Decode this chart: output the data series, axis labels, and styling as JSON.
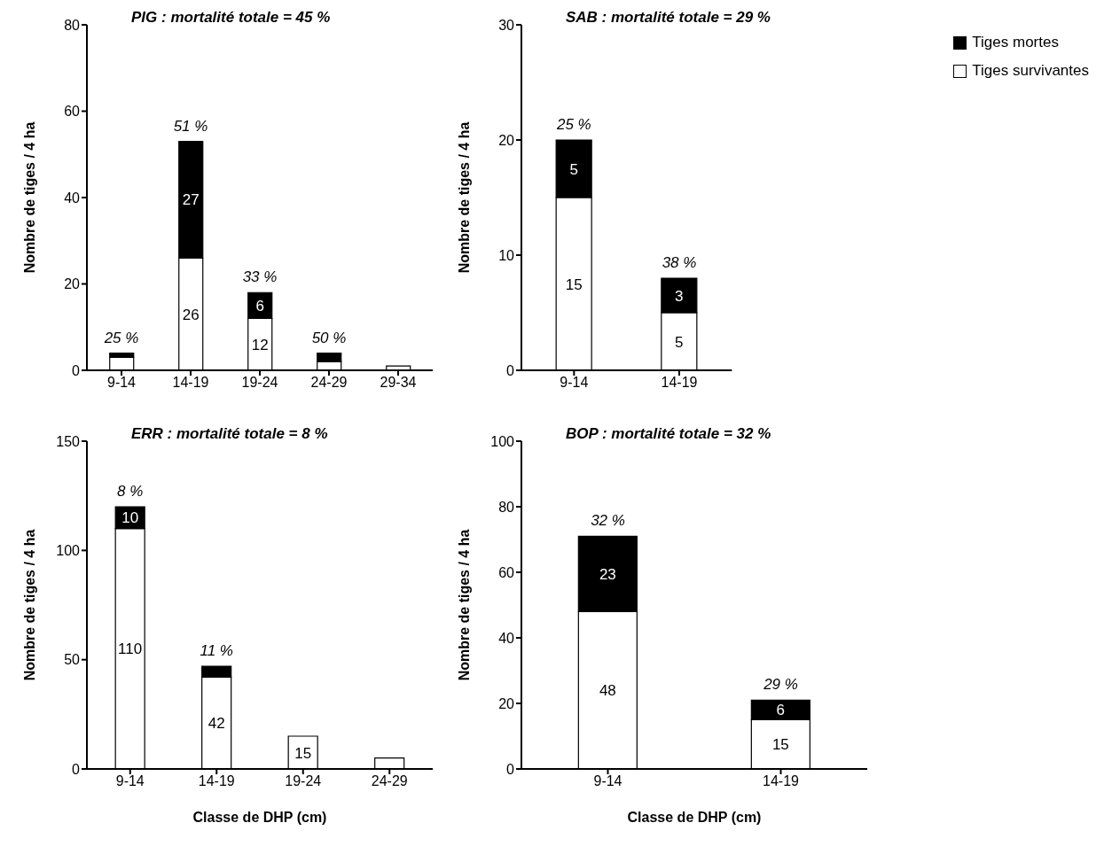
{
  "chart_data": [
    {
      "type": "bar",
      "title": "PIG : mortalité totale = 45 %",
      "ylabel": "Nombre de tiges / 4 ha",
      "categories": [
        "9-14",
        "14-19",
        "19-24",
        "24-29",
        "29-34"
      ],
      "stacked": true,
      "ylim": [
        0,
        80
      ],
      "yticks": [
        0,
        20,
        40,
        60,
        80
      ],
      "grid": false,
      "legend": false,
      "series": [
        {
          "color": "#ffffff",
          "values": [
            3,
            26,
            12,
            2,
            1
          ],
          "value_labels": [
            null,
            "26",
            "12",
            null,
            null
          ]
        },
        {
          "color": "#000000",
          "values": [
            1,
            27,
            6,
            2,
            0
          ],
          "value_labels": [
            null,
            "27",
            "6",
            null,
            null
          ]
        }
      ],
      "annotations": [
        {
          "text": "25 %",
          "x": "9-14",
          "y": 4
        },
        {
          "text": "51 %",
          "x": "14-19",
          "y": 53
        },
        {
          "text": "33 %",
          "x": "19-24",
          "y": 18
        },
        {
          "text": "50 %",
          "x": "24-29",
          "y": 4
        }
      ]
    },
    {
      "type": "bar",
      "title": "SAB : mortalité totale = 29 %",
      "ylabel": "Nombre de tiges / 4 ha",
      "categories": [
        "9-14",
        "14-19"
      ],
      "stacked": true,
      "ylim": [
        0,
        30
      ],
      "yticks": [
        0,
        10,
        20,
        30
      ],
      "grid": false,
      "legend": "top right",
      "series": [
        {
          "name": "Tiges survivantes",
          "color": "#ffffff",
          "values": [
            15,
            5
          ],
          "value_labels": [
            "15",
            "5"
          ]
        },
        {
          "name": "Tiges mortes",
          "color": "#000000",
          "values": [
            5,
            3
          ],
          "value_labels": [
            "5",
            "3"
          ]
        }
      ],
      "annotations": [
        {
          "text": "25 %",
          "x": "9-14",
          "y": 20
        },
        {
          "text": "38 %",
          "x": "14-19",
          "y": 8
        }
      ]
    },
    {
      "type": "bar",
      "title": "ERR : mortalité totale = 8 %",
      "xlabel": "Classe de DHP (cm)",
      "ylabel": "Nombre de tiges / 4 ha",
      "categories": [
        "9-14",
        "14-19",
        "19-24",
        "24-29"
      ],
      "stacked": true,
      "ylim": [
        0,
        150
      ],
      "yticks": [
        0,
        50,
        100,
        150
      ],
      "grid": false,
      "legend": false,
      "series": [
        {
          "color": "#ffffff",
          "values": [
            110,
            42,
            15,
            5
          ],
          "value_labels": [
            "110",
            "42",
            "15",
            null
          ]
        },
        {
          "color": "#000000",
          "values": [
            10,
            5,
            0,
            0
          ],
          "value_labels": [
            "10",
            null,
            null,
            null
          ]
        }
      ],
      "annotations": [
        {
          "text": "8 %",
          "x": "9-14",
          "y": 120
        },
        {
          "text": "11 %",
          "x": "14-19",
          "y": 47
        }
      ]
    },
    {
      "type": "bar",
      "title": "BOP : mortalité totale = 32 %",
      "xlabel": "Classe de DHP (cm)",
      "ylabel": "Nombre de tiges / 4 ha",
      "categories": [
        "9-14",
        "14-19"
      ],
      "stacked": true,
      "ylim": [
        0,
        100
      ],
      "yticks": [
        0,
        20,
        40,
        60,
        80,
        100
      ],
      "grid": false,
      "legend": false,
      "series": [
        {
          "color": "#ffffff",
          "values": [
            48,
            15
          ],
          "value_labels": [
            "48",
            "15"
          ]
        },
        {
          "color": "#000000",
          "values": [
            23,
            6
          ],
          "value_labels": [
            "23",
            "6"
          ]
        }
      ],
      "annotations": [
        {
          "text": "32 %",
          "x": "9-14",
          "y": 71
        },
        {
          "text": "29 %",
          "x": "14-19",
          "y": 21
        }
      ]
    }
  ]
}
